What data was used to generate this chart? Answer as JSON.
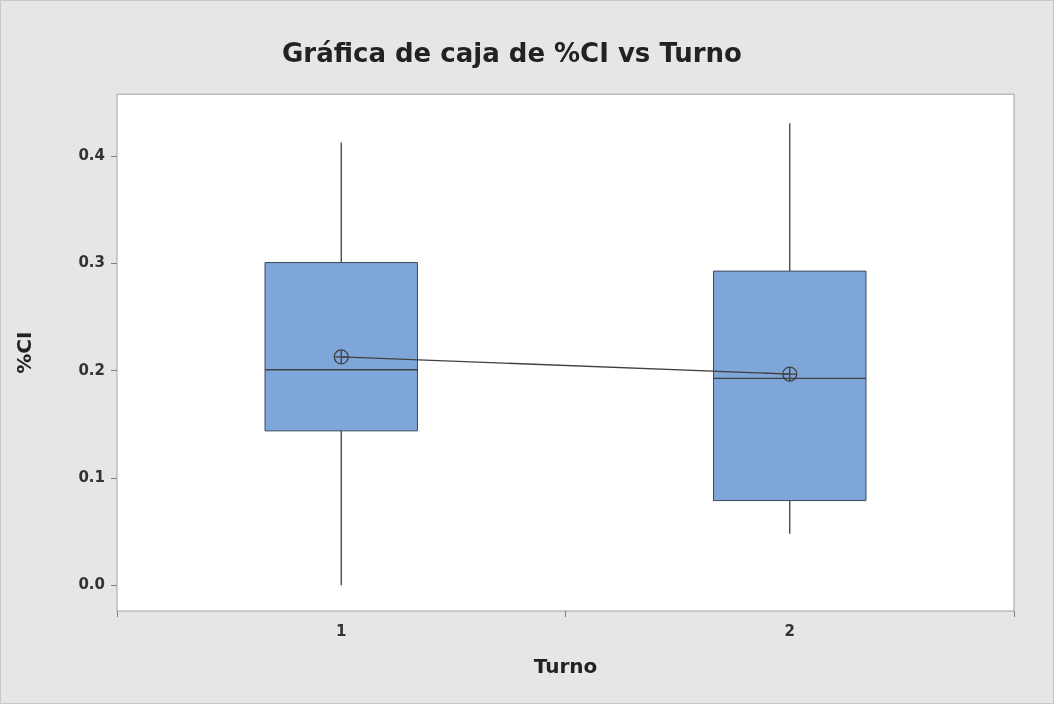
{
  "chart_data": {
    "type": "box",
    "title": "Gráfica de caja de %CI vs Turno",
    "xlabel": "Turno",
    "ylabel": "%CI",
    "categories": [
      "1",
      "2"
    ],
    "color": "#7ea6d8",
    "boxes": [
      {
        "low": 0.0,
        "q1": 0.144,
        "median": 0.201,
        "q3": 0.301,
        "high": 0.413,
        "mean": 0.213
      },
      {
        "low": 0.048,
        "q1": 0.079,
        "median": 0.193,
        "q3": 0.293,
        "high": 0.431,
        "mean": 0.197
      }
    ],
    "series": [
      {
        "type": "line",
        "color": "#404040",
        "values": [
          0.213,
          0.197
        ]
      }
    ],
    "ylim": [
      -0.024,
      0.458
    ],
    "yticks": [
      {
        "value": 0,
        "label": "0.0"
      },
      0.1,
      0.2,
      0.3,
      0.4
    ],
    "grid": false,
    "legend": false
  }
}
